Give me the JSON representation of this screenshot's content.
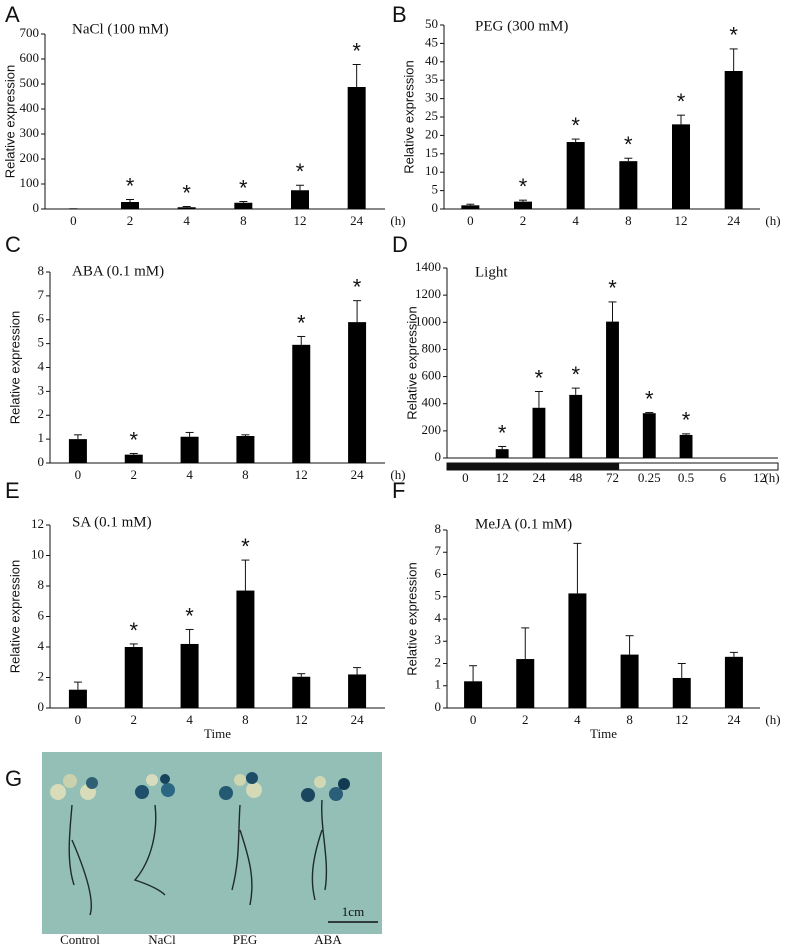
{
  "chart_data": [
    {
      "type": "bar",
      "panel": "A",
      "title": "NaCl (100 mM)",
      "ylabel": "Relative expression",
      "xunit": "(h)",
      "categories": [
        "0",
        "2",
        "4",
        "8",
        "12",
        "24"
      ],
      "values": [
        1,
        28,
        7,
        25,
        75,
        488
      ],
      "errors": [
        0,
        10,
        3,
        5,
        20,
        90
      ],
      "markers": [
        null,
        "*",
        "*",
        "*",
        "*",
        "*"
      ],
      "ylim": [
        0,
        700
      ],
      "yticks": [
        0,
        100,
        200,
        300,
        400,
        500,
        600,
        700
      ],
      "color": "#000000"
    },
    {
      "type": "bar",
      "panel": "B",
      "title": "PEG (300 mM)",
      "ylabel": "Relative expression",
      "xunit": "(h)",
      "categories": [
        "0",
        "2",
        "4",
        "8",
        "12",
        "24"
      ],
      "values": [
        1,
        2,
        18.2,
        13,
        23,
        37.5
      ],
      "errors": [
        0.3,
        0.4,
        0.8,
        0.8,
        2.5,
        6
      ],
      "markers": [
        null,
        "*",
        "*",
        "*",
        "*",
        "*"
      ],
      "ylim": [
        0,
        50
      ],
      "yticks": [
        0,
        5,
        10,
        15,
        20,
        25,
        30,
        35,
        40,
        45,
        50
      ],
      "color": "#000000"
    },
    {
      "type": "bar",
      "panel": "C",
      "title": "ABA (0.1 mM)",
      "ylabel": "Relative expression",
      "xunit": "(h)",
      "categories": [
        "0",
        "2",
        "4",
        "8",
        "12",
        "24"
      ],
      "values": [
        1,
        0.35,
        1.1,
        1.13,
        4.95,
        5.9
      ],
      "errors": [
        0.18,
        0.05,
        0.18,
        0.05,
        0.35,
        0.9
      ],
      "markers": [
        null,
        "*",
        null,
        null,
        "*",
        "*"
      ],
      "ylim": [
        0,
        8
      ],
      "yticks": [
        0,
        1,
        2,
        3,
        4,
        5,
        6,
        7,
        8
      ],
      "color": "#000000"
    },
    {
      "type": "bar",
      "panel": "D",
      "title": "Light",
      "ylabel": "Relative expression",
      "xunit": "(h)",
      "categories": [
        "0",
        "12",
        "24",
        "48",
        "72",
        "0.25",
        "0.5",
        "6",
        "12"
      ],
      "values": [
        0,
        65,
        370,
        465,
        1005,
        330,
        170,
        0,
        0
      ],
      "errors": [
        0,
        20,
        120,
        50,
        145,
        5,
        8,
        0,
        0
      ],
      "markers": [
        null,
        "*",
        "*",
        "*",
        "*",
        "*",
        "*",
        null,
        null
      ],
      "ylim": [
        0,
        1400
      ],
      "yticks": [
        0,
        200,
        400,
        600,
        800,
        1000,
        1200,
        1400
      ],
      "color": "#000000"
    },
    {
      "type": "bar",
      "panel": "E",
      "title": "SA (0.1 mM)",
      "ylabel": "Relative expression",
      "xlabel": "Time",
      "categories": [
        "0",
        "2",
        "4",
        "8",
        "12",
        "24"
      ],
      "values": [
        1.2,
        4,
        4.2,
        7.7,
        2.05,
        2.2
      ],
      "errors": [
        0.5,
        0.2,
        0.95,
        2,
        0.2,
        0.45
      ],
      "markers": [
        null,
        "*",
        "*",
        "*",
        null,
        null
      ],
      "ylim": [
        0,
        12
      ],
      "yticks": [
        0,
        2,
        4,
        6,
        8,
        10,
        12
      ],
      "color": "#000000"
    },
    {
      "type": "bar",
      "panel": "F",
      "title": "MeJA (0.1 mM)",
      "ylabel": "Relative expression",
      "xlabel": "Time",
      "xunit": "(h)",
      "categories": [
        "0",
        "2",
        "4",
        "8",
        "12",
        "24"
      ],
      "values": [
        1.2,
        2.2,
        5.15,
        2.4,
        1.35,
        2.3
      ],
      "errors": [
        0.7,
        1.4,
        2.25,
        0.85,
        0.65,
        0.2
      ],
      "ylim": [
        0,
        8
      ],
      "yticks": [
        0,
        1,
        2,
        3,
        4,
        5,
        6,
        7,
        8
      ],
      "color": "#000000"
    }
  ],
  "photo": {
    "panel": "G",
    "labels": [
      "Control",
      "NaCl",
      "PEG",
      "ABA"
    ],
    "scale_bar": "1cm"
  }
}
